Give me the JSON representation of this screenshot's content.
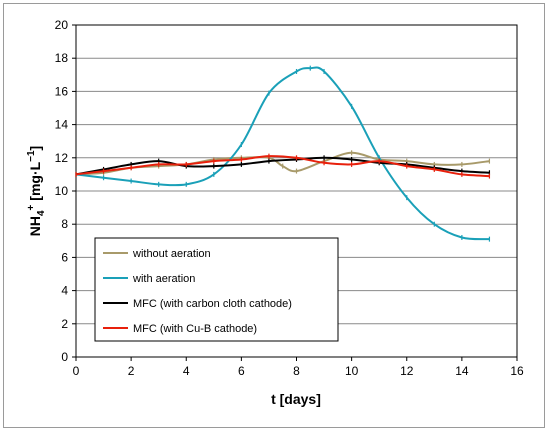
{
  "chart_data": {
    "type": "line",
    "xlabel": "t [days]",
    "ylabel_parts": {
      "base": "NH",
      "sub": "4",
      "sup": "+",
      "unit": " [mg·L",
      "unit_sup": "−1",
      "close": "]"
    },
    "xlim": [
      0,
      16
    ],
    "ylim": [
      0,
      20
    ],
    "x_ticks": [
      "0",
      "2",
      "4",
      "6",
      "8",
      "10",
      "12",
      "14",
      "16"
    ],
    "y_ticks": [
      "0",
      "2",
      "4",
      "6",
      "8",
      "10",
      "12",
      "14",
      "16",
      "18",
      "20"
    ],
    "grid": "horizontal",
    "legend_position": "lower-left",
    "series": [
      {
        "name": "without aeration",
        "color": "#a89a6a",
        "x": [
          0,
          1,
          2,
          3,
          4,
          5,
          6,
          7,
          7.5,
          8,
          9,
          10,
          11,
          12,
          13,
          14,
          15
        ],
        "values": [
          11.0,
          11.1,
          11.4,
          11.5,
          11.6,
          11.9,
          12.0,
          12.0,
          11.5,
          11.2,
          11.8,
          12.3,
          11.9,
          11.8,
          11.6,
          11.6,
          11.8
        ]
      },
      {
        "name": "with aeration",
        "color": "#1aa0b8",
        "x": [
          0,
          1,
          2,
          3,
          4,
          5,
          6,
          7,
          8,
          8.5,
          9,
          10,
          11,
          12,
          13,
          14,
          15
        ],
        "values": [
          11.0,
          10.8,
          10.6,
          10.4,
          10.4,
          11.0,
          12.8,
          15.9,
          17.2,
          17.4,
          17.2,
          15.1,
          12.0,
          9.6,
          8.0,
          7.2,
          7.1
        ]
      },
      {
        "name": "MFC (with carbon cloth cathode)",
        "color": "#000000",
        "x": [
          0,
          1,
          2,
          3,
          4,
          5,
          6,
          7,
          8,
          9,
          10,
          11,
          12,
          13,
          14,
          15
        ],
        "values": [
          11.0,
          11.3,
          11.6,
          11.8,
          11.5,
          11.5,
          11.6,
          11.8,
          11.9,
          12.0,
          11.9,
          11.7,
          11.6,
          11.4,
          11.2,
          11.1
        ]
      },
      {
        "name": "MFC (with Cu-B cathode)",
        "color": "#e8200c",
        "x": [
          0,
          1,
          2,
          3,
          4,
          5,
          6,
          7,
          8,
          9,
          10,
          11,
          12,
          13,
          14,
          15
        ],
        "values": [
          11.0,
          11.2,
          11.4,
          11.6,
          11.6,
          11.8,
          11.9,
          12.1,
          12.0,
          11.7,
          11.6,
          11.8,
          11.5,
          11.3,
          11.0,
          10.9
        ]
      }
    ]
  }
}
